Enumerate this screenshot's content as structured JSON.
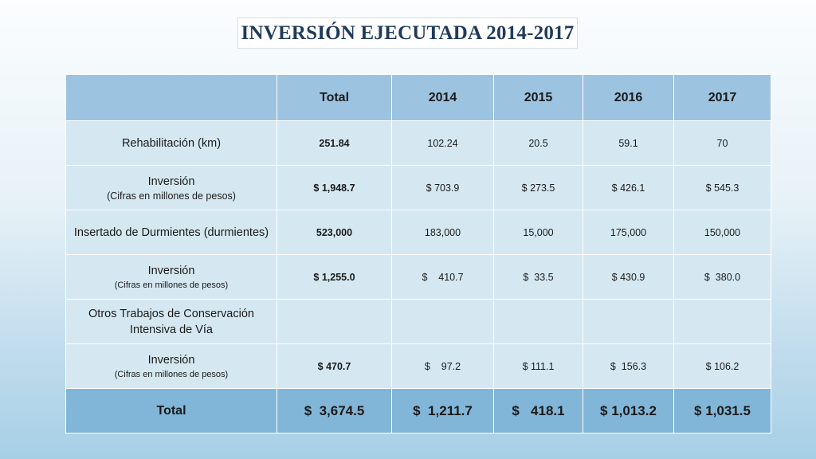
{
  "title": "INVERSIÓN EJECUTADA 2014-2017",
  "table": {
    "headers": [
      "",
      "Total",
      "2014",
      "2015",
      "2016",
      "2017"
    ],
    "rows": [
      {
        "label": "Rehabilitación (km)",
        "sublabel": "",
        "total": "251.84",
        "values": [
          "102.24",
          "20.5",
          "59.1",
          "70"
        ]
      },
      {
        "label": "Inversión",
        "sublabel": "(Cifras en millones de pesos)",
        "total": "$ 1,948.7",
        "values": [
          "$  703.9",
          "$ 273.5",
          "$  426.1",
          "$ 545.3"
        ]
      },
      {
        "label": "Insertado de Durmientes (durmientes)",
        "sublabel": "",
        "total": "523,000",
        "values": [
          "183,000",
          "15,000",
          "175,000",
          "150,000"
        ]
      },
      {
        "label": "Inversión",
        "sublabel": "(Cifras en millones de pesos)",
        "total": "$ 1,255.0",
        "values": [
          "$    410.7",
          "$  33.5",
          "$ 430.9",
          "$  380.0"
        ]
      },
      {
        "label": "Otros Trabajos de Conservación Intensiva de Vía",
        "sublabel": "",
        "total": "",
        "values": [
          "",
          "",
          "",
          ""
        ]
      },
      {
        "label": "Inversión",
        "sublabel": "(Cifras en millones de pesos)",
        "total": "$ 470.7",
        "values": [
          "$    97.2",
          "$ 111.1",
          "$  156.3",
          "$ 106.2"
        ]
      }
    ],
    "footer": {
      "label": "Total",
      "total": "$  3,674.5",
      "values": [
        "$  1,211.7",
        "$   418.1",
        "$ 1,013.2",
        "$ 1,031.5"
      ]
    }
  }
}
